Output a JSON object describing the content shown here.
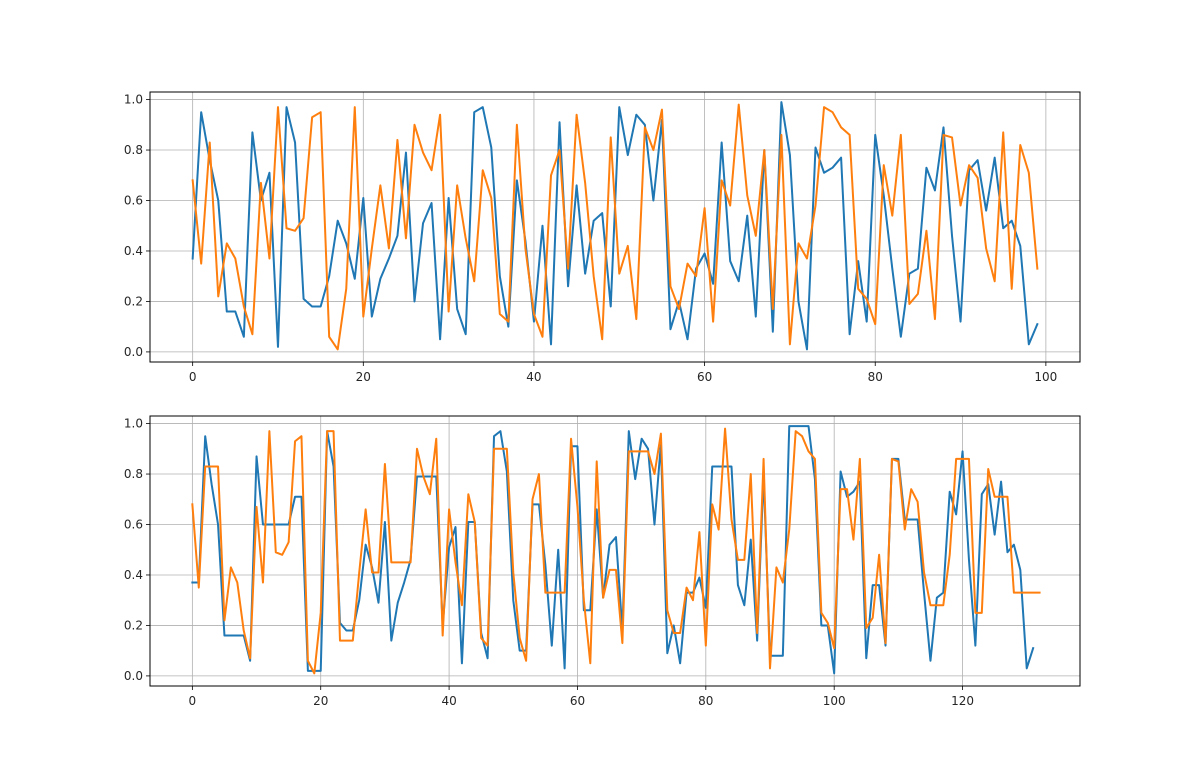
{
  "chart_data": [
    {
      "type": "line",
      "title": "",
      "xlabel": "",
      "ylabel": "",
      "xlim": [
        -5,
        104
      ],
      "ylim": [
        -0.04,
        1.03
      ],
      "xticks": [
        0,
        20,
        40,
        60,
        80,
        100
      ],
      "xtick_labels": [
        "0",
        "20",
        "40",
        "60",
        "80",
        "100"
      ],
      "yticks": [
        0.0,
        0.2,
        0.4,
        0.6,
        0.8,
        1.0
      ],
      "ytick_labels": [
        "0.0",
        "0.2",
        "0.4",
        "0.6",
        "0.8",
        "1.0"
      ],
      "grid": true,
      "legend": null,
      "series": [
        {
          "color": "#1f77b4",
          "x": [
            0,
            1,
            2,
            3,
            4,
            5,
            6,
            7,
            8,
            9,
            10,
            11,
            12,
            13,
            14,
            15,
            16,
            17,
            18,
            19,
            20,
            21,
            22,
            23,
            24,
            25,
            26,
            27,
            28,
            29,
            30,
            31,
            32,
            33,
            34,
            35,
            36,
            37,
            38,
            39,
            40,
            41,
            42,
            43,
            44,
            45,
            46,
            47,
            48,
            49,
            50,
            51,
            52,
            53,
            54,
            55,
            56,
            57,
            58,
            59,
            60,
            61,
            62,
            63,
            64,
            65,
            66,
            67,
            68,
            69,
            70,
            71,
            72,
            73,
            74,
            75,
            76,
            77,
            78,
            79,
            80,
            81,
            82,
            83,
            84,
            85,
            86,
            87,
            88,
            89,
            90,
            91,
            92,
            93,
            94,
            95,
            96,
            97,
            98,
            99
          ],
          "values": [
            0.37,
            0.95,
            0.76,
            0.6,
            0.16,
            0.16,
            0.06,
            0.87,
            0.6,
            0.71,
            0.02,
            0.97,
            0.83,
            0.21,
            0.18,
            0.18,
            0.3,
            0.52,
            0.43,
            0.29,
            0.61,
            0.14,
            0.29,
            0.37,
            0.46,
            0.79,
            0.2,
            0.51,
            0.59,
            0.05,
            0.61,
            0.17,
            0.07,
            0.95,
            0.97,
            0.81,
            0.3,
            0.1,
            0.68,
            0.44,
            0.12,
            0.5,
            0.03,
            0.91,
            0.26,
            0.66,
            0.31,
            0.52,
            0.55,
            0.18,
            0.97,
            0.78,
            0.94,
            0.9,
            0.6,
            0.92,
            0.09,
            0.2,
            0.05,
            0.33,
            0.39,
            0.27,
            0.83,
            0.36,
            0.28,
            0.54,
            0.14,
            0.8,
            0.08,
            0.99,
            0.78,
            0.2,
            0.01,
            0.81,
            0.71,
            0.73,
            0.77,
            0.07,
            0.36,
            0.12,
            0.86,
            0.62,
            0.33,
            0.06,
            0.31,
            0.33,
            0.73,
            0.64,
            0.89,
            0.46,
            0.12,
            0.72,
            0.76,
            0.56,
            0.77,
            0.49,
            0.52,
            0.42,
            0.03,
            0.11
          ]
        },
        {
          "color": "#ff7f0e",
          "x": [
            0,
            1,
            2,
            3,
            4,
            5,
            6,
            7,
            8,
            9,
            10,
            11,
            12,
            13,
            14,
            15,
            16,
            17,
            18,
            19,
            20,
            21,
            22,
            23,
            24,
            25,
            26,
            27,
            28,
            29,
            30,
            31,
            32,
            33,
            34,
            35,
            36,
            37,
            38,
            39,
            40,
            41,
            42,
            43,
            44,
            45,
            46,
            47,
            48,
            49,
            50,
            51,
            52,
            53,
            54,
            55,
            56,
            57,
            58,
            59,
            60,
            61,
            62,
            63,
            64,
            65,
            66,
            67,
            68,
            69,
            70,
            71,
            72,
            73,
            74,
            75,
            76,
            77,
            78,
            79,
            80,
            81,
            82,
            83,
            84,
            85,
            86,
            87,
            88,
            89,
            90,
            91,
            92,
            93,
            94,
            95,
            96,
            97,
            98,
            99
          ],
          "values": [
            0.68,
            0.35,
            0.83,
            0.22,
            0.43,
            0.37,
            0.18,
            0.07,
            0.67,
            0.37,
            0.97,
            0.49,
            0.48,
            0.53,
            0.93,
            0.95,
            0.06,
            0.01,
            0.25,
            0.97,
            0.14,
            0.41,
            0.66,
            0.41,
            0.84,
            0.45,
            0.9,
            0.79,
            0.72,
            0.94,
            0.16,
            0.66,
            0.45,
            0.28,
            0.72,
            0.61,
            0.15,
            0.12,
            0.9,
            0.41,
            0.15,
            0.06,
            0.7,
            0.8,
            0.33,
            0.94,
            0.67,
            0.3,
            0.05,
            0.85,
            0.31,
            0.42,
            0.13,
            0.89,
            0.8,
            0.96,
            0.26,
            0.17,
            0.35,
            0.3,
            0.57,
            0.12,
            0.68,
            0.58,
            0.98,
            0.62,
            0.46,
            0.8,
            0.17,
            0.86,
            0.03,
            0.43,
            0.37,
            0.58,
            0.97,
            0.95,
            0.89,
            0.86,
            0.25,
            0.21,
            0.11,
            0.74,
            0.54,
            0.86,
            0.19,
            0.23,
            0.48,
            0.13,
            0.86,
            0.85,
            0.58,
            0.74,
            0.69,
            0.41,
            0.28,
            0.87,
            0.25,
            0.82,
            0.71,
            0.33
          ]
        }
      ]
    },
    {
      "type": "line",
      "title": "",
      "xlabel": "",
      "ylabel": "",
      "xlim": [
        -6.6,
        138.3
      ],
      "ylim": [
        -0.04,
        1.03
      ],
      "xticks": [
        0,
        20,
        40,
        60,
        80,
        100,
        120
      ],
      "xtick_labels": [
        "0",
        "20",
        "40",
        "60",
        "80",
        "100",
        "120"
      ],
      "yticks": [
        0.0,
        0.2,
        0.4,
        0.6,
        0.8,
        1.0
      ],
      "ytick_labels": [
        "0.0",
        "0.2",
        "0.4",
        "0.6",
        "0.8",
        "1.0"
      ],
      "grid": true,
      "legend": null,
      "series": [
        {
          "color": "#1f77b4",
          "values": [
            0.37,
            0.37,
            0.95,
            0.76,
            0.6,
            0.16,
            0.16,
            0.16,
            0.16,
            0.06,
            0.87,
            0.6,
            0.6,
            0.6,
            0.6,
            0.6,
            0.71,
            0.71,
            0.02,
            0.02,
            0.02,
            0.97,
            0.83,
            0.21,
            0.18,
            0.18,
            0.3,
            0.52,
            0.43,
            0.29,
            0.61,
            0.14,
            0.29,
            0.37,
            0.46,
            0.79,
            0.79,
            0.79,
            0.79,
            0.2,
            0.51,
            0.59,
            0.05,
            0.61,
            0.61,
            0.17,
            0.07,
            0.95,
            0.97,
            0.81,
            0.3,
            0.1,
            0.1,
            0.68,
            0.68,
            0.44,
            0.12,
            0.5,
            0.03,
            0.91,
            0.91,
            0.26,
            0.26,
            0.66,
            0.31,
            0.52,
            0.55,
            0.18,
            0.97,
            0.78,
            0.94,
            0.9,
            0.6,
            0.92,
            0.09,
            0.2,
            0.05,
            0.33,
            0.33,
            0.39,
            0.27,
            0.83,
            0.83,
            0.83,
            0.83,
            0.36,
            0.28,
            0.54,
            0.14,
            0.8,
            0.08,
            0.08,
            0.08,
            0.99,
            0.99,
            0.99,
            0.99,
            0.78,
            0.2,
            0.2,
            0.01,
            0.81,
            0.71,
            0.73,
            0.77,
            0.07,
            0.36,
            0.36,
            0.12,
            0.86,
            0.86,
            0.62,
            0.62,
            0.62,
            0.33,
            0.06,
            0.31,
            0.33,
            0.73,
            0.64,
            0.89,
            0.46,
            0.12,
            0.72,
            0.76,
            0.56,
            0.77,
            0.49,
            0.52,
            0.42,
            0.03,
            0.11
          ]
        },
        {
          "color": "#ff7f0e",
          "values": [
            0.68,
            0.35,
            0.83,
            0.83,
            0.83,
            0.22,
            0.43,
            0.37,
            0.18,
            0.07,
            0.67,
            0.37,
            0.97,
            0.49,
            0.48,
            0.53,
            0.93,
            0.95,
            0.06,
            0.01,
            0.25,
            0.97,
            0.97,
            0.14,
            0.14,
            0.14,
            0.41,
            0.66,
            0.41,
            0.41,
            0.84,
            0.45,
            0.45,
            0.45,
            0.45,
            0.9,
            0.79,
            0.72,
            0.94,
            0.16,
            0.66,
            0.45,
            0.28,
            0.72,
            0.61,
            0.15,
            0.12,
            0.9,
            0.9,
            0.9,
            0.41,
            0.15,
            0.06,
            0.7,
            0.8,
            0.33,
            0.33,
            0.33,
            0.33,
            0.94,
            0.67,
            0.3,
            0.05,
            0.85,
            0.31,
            0.42,
            0.42,
            0.13,
            0.89,
            0.89,
            0.89,
            0.89,
            0.8,
            0.96,
            0.26,
            0.17,
            0.17,
            0.35,
            0.3,
            0.57,
            0.12,
            0.68,
            0.58,
            0.98,
            0.62,
            0.46,
            0.46,
            0.8,
            0.17,
            0.86,
            0.03,
            0.43,
            0.37,
            0.58,
            0.97,
            0.95,
            0.89,
            0.86,
            0.25,
            0.21,
            0.11,
            0.74,
            0.74,
            0.54,
            0.86,
            0.19,
            0.23,
            0.48,
            0.13,
            0.86,
            0.85,
            0.58,
            0.74,
            0.69,
            0.41,
            0.28,
            0.28,
            0.28,
            0.48,
            0.86,
            0.86,
            0.86,
            0.25,
            0.25,
            0.82,
            0.71,
            0.71,
            0.71,
            0.33,
            0.33,
            0.33,
            0.33,
            0.33
          ]
        }
      ]
    }
  ]
}
